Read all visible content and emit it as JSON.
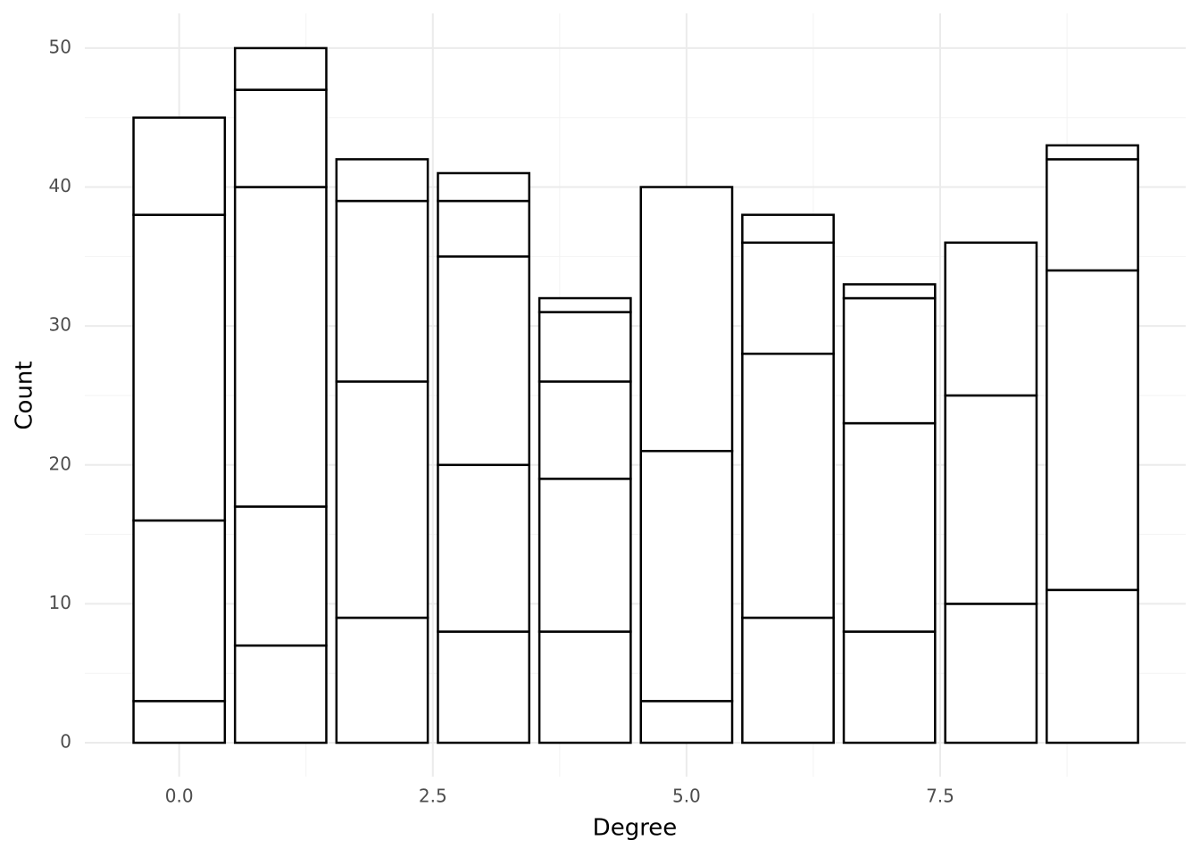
{
  "chart_data": {
    "type": "stacked-bar",
    "x_label": "Degree",
    "y_label": "Count",
    "x": [
      0,
      1,
      2,
      3,
      4,
      5,
      6,
      7,
      8,
      9
    ],
    "segments": [
      [
        3,
        13,
        22,
        7
      ],
      [
        7,
        10,
        23,
        7,
        3
      ],
      [
        9,
        17,
        13,
        3
      ],
      [
        8,
        12,
        15,
        4,
        2
      ],
      [
        8,
        11,
        7,
        5,
        1
      ],
      [
        3,
        18,
        19
      ],
      [
        9,
        19,
        8,
        2
      ],
      [
        8,
        15,
        9,
        1
      ],
      [
        10,
        15,
        11
      ],
      [
        11,
        23,
        8,
        1
      ]
    ],
    "fill": "#ffffff",
    "stroke": "#000000",
    "bar_width": 0.9,
    "xlim": [
      -0.93,
      9.92
    ],
    "xticks": [
      {
        "value": 0,
        "label": "0.0"
      },
      2.5,
      {
        "value": 5,
        "label": "5.0"
      },
      7.5
    ],
    "ylim": [
      -2.44,
      52.5
    ],
    "yticks": [
      0,
      10,
      20,
      30,
      40,
      50
    ],
    "grid": true
  }
}
